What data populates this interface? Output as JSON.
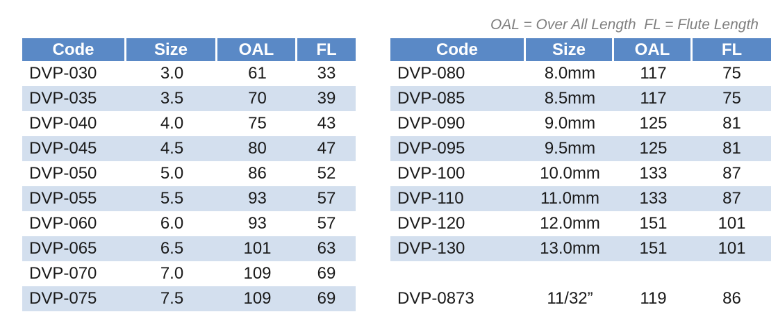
{
  "note": "OAL = Over All Length  FL = Flute Length",
  "left_table": {
    "columns": [
      "Code",
      "Size",
      "OAL",
      "FL"
    ],
    "rows": [
      [
        "DVP-030",
        "3.0",
        "61",
        "33"
      ],
      [
        "DVP-035",
        "3.5",
        "70",
        "39"
      ],
      [
        "DVP-040",
        "4.0",
        "75",
        "43"
      ],
      [
        "DVP-045",
        "4.5",
        "80",
        "47"
      ],
      [
        "DVP-050",
        "5.0",
        "86",
        "52"
      ],
      [
        "DVP-055",
        "5.5",
        "93",
        "57"
      ],
      [
        "DVP-060",
        "6.0",
        "93",
        "57"
      ],
      [
        "DVP-065",
        "6.5",
        "101",
        "63"
      ],
      [
        "DVP-070",
        "7.0",
        "109",
        "69"
      ],
      [
        "DVP-075",
        "7.5",
        "109",
        "69"
      ]
    ]
  },
  "right_table": {
    "columns": [
      "Code",
      "Size",
      "OAL",
      "FL"
    ],
    "rows": [
      [
        "DVP-080",
        "8.0mm",
        "117",
        "75"
      ],
      [
        "DVP-085",
        "8.5mm",
        "117",
        "75"
      ],
      [
        "DVP-090",
        "9.0mm",
        "125",
        "81"
      ],
      [
        "DVP-095",
        "9.5mm",
        "125",
        "81"
      ],
      [
        "DVP-100",
        "10.0mm",
        "133",
        "87"
      ],
      [
        "DVP-110",
        "11.0mm",
        "133",
        "87"
      ],
      [
        "DVP-120",
        "12.0mm",
        "151",
        "101"
      ],
      [
        "DVP-130",
        "13.0mm",
        "151",
        "101"
      ]
    ],
    "footer_rows": [
      [
        "DVP-0873",
        "11/32”",
        "119",
        "86"
      ]
    ]
  }
}
